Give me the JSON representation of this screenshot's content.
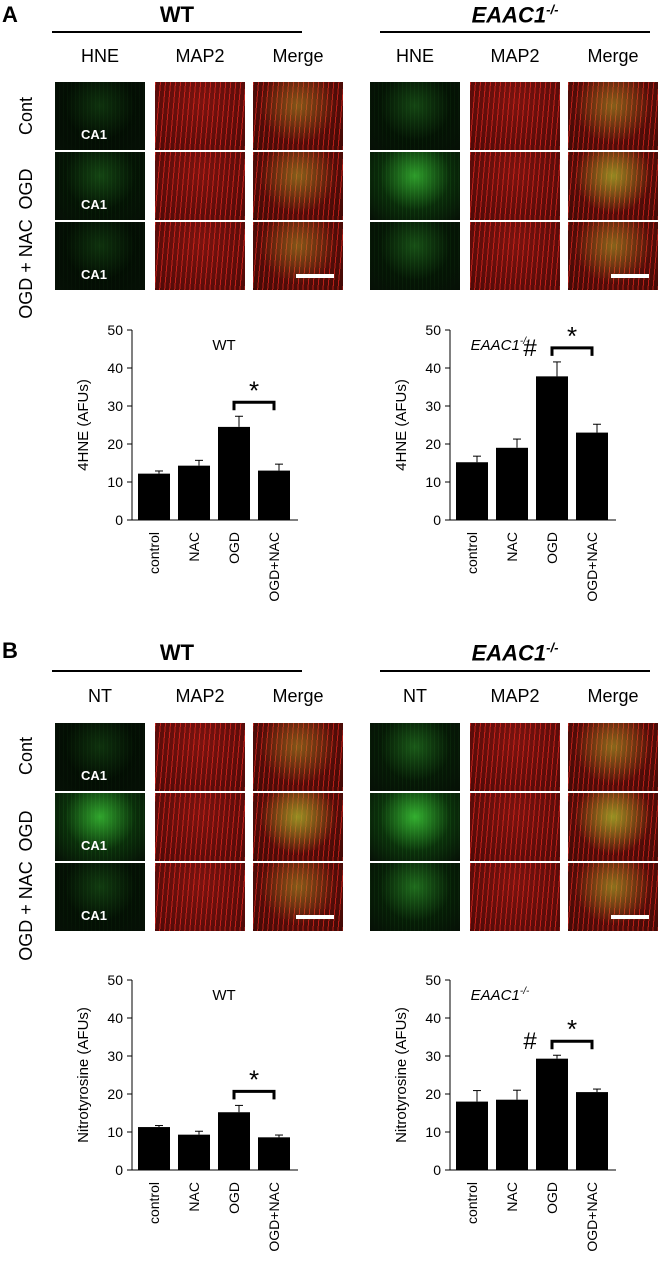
{
  "panels": [
    {
      "letter": "A",
      "groups": [
        {
          "genotype": "WT",
          "italic": false,
          "columns": [
            "HNE",
            "MAP2",
            "Merge"
          ]
        },
        {
          "genotype": "EAAC1",
          "sup": "-/-",
          "italic": true,
          "columns": [
            "HNE",
            "MAP2",
            "Merge"
          ]
        }
      ],
      "rows": [
        "Cont",
        "OGD",
        "OGD + NAC"
      ],
      "region_label": "CA1"
    },
    {
      "letter": "B",
      "groups": [
        {
          "genotype": "WT",
          "italic": false,
          "columns": [
            "NT",
            "MAP2",
            "Merge"
          ]
        },
        {
          "genotype": "EAAC1",
          "sup": "-/-",
          "italic": true,
          "columns": [
            "NT",
            "MAP2",
            "Merge"
          ]
        }
      ],
      "rows": [
        "Cont",
        "OGD",
        "OGD + NAC"
      ],
      "region_label": "CA1"
    }
  ],
  "colors": {
    "green": "#39c235",
    "red": "#c9221b",
    "bar": "#000000"
  },
  "chart_data": [
    {
      "type": "bar",
      "title": "WT",
      "ylabel": "4HNE (AFUs)",
      "categories": [
        "control",
        "NAC",
        "OGD",
        "OGD+NAC"
      ],
      "values": [
        12.2,
        14.3,
        24.5,
        13
      ],
      "errors": [
        0.7,
        1.4,
        2.8,
        1.7
      ],
      "ylim": [
        0,
        50
      ],
      "yticks": [
        0,
        10,
        20,
        30,
        40,
        50
      ],
      "annotations": [
        {
          "text": "*",
          "between": [
            2,
            3
          ]
        }
      ]
    },
    {
      "type": "bar",
      "title": "EAAC1",
      "title_sup": "-/-",
      "ylabel": "4HNE (AFUs)",
      "categories": [
        "control",
        "NAC",
        "OGD",
        "OGD+NAC"
      ],
      "values": [
        15.2,
        19,
        37.8,
        23
      ],
      "errors": [
        1.6,
        2.3,
        3.8,
        2.2
      ],
      "ylim": [
        0,
        50
      ],
      "yticks": [
        0,
        10,
        20,
        30,
        40,
        50
      ],
      "annotations": [
        {
          "text": "*",
          "between": [
            2,
            3
          ]
        },
        {
          "text": "#",
          "over": 2
        }
      ]
    },
    {
      "type": "bar",
      "title": "WT",
      "ylabel": "Nitrotyrosine (AFUs)",
      "categories": [
        "control",
        "NAC",
        "OGD",
        "OGD+NAC"
      ],
      "values": [
        11.3,
        9.3,
        15.2,
        8.6
      ],
      "errors": [
        0.4,
        0.9,
        1.8,
        0.6
      ],
      "ylim": [
        0,
        50
      ],
      "yticks": [
        0,
        10,
        20,
        30,
        40,
        50
      ],
      "annotations": [
        {
          "text": "*",
          "between": [
            2,
            3
          ]
        }
      ]
    },
    {
      "type": "bar",
      "title": "EAAC1",
      "title_sup": "-/-",
      "ylabel": "Nitrotyrosine (AFUs)",
      "categories": [
        "control",
        "NAC",
        "OGD",
        "OGD+NAC"
      ],
      "values": [
        18,
        18.5,
        29.3,
        20.5
      ],
      "errors": [
        2.9,
        2.5,
        0.9,
        0.8
      ],
      "ylim": [
        0,
        50
      ],
      "yticks": [
        0,
        10,
        20,
        30,
        40,
        50
      ],
      "annotations": [
        {
          "text": "*",
          "between": [
            2,
            3
          ]
        },
        {
          "text": "#",
          "over": 2
        }
      ]
    }
  ]
}
